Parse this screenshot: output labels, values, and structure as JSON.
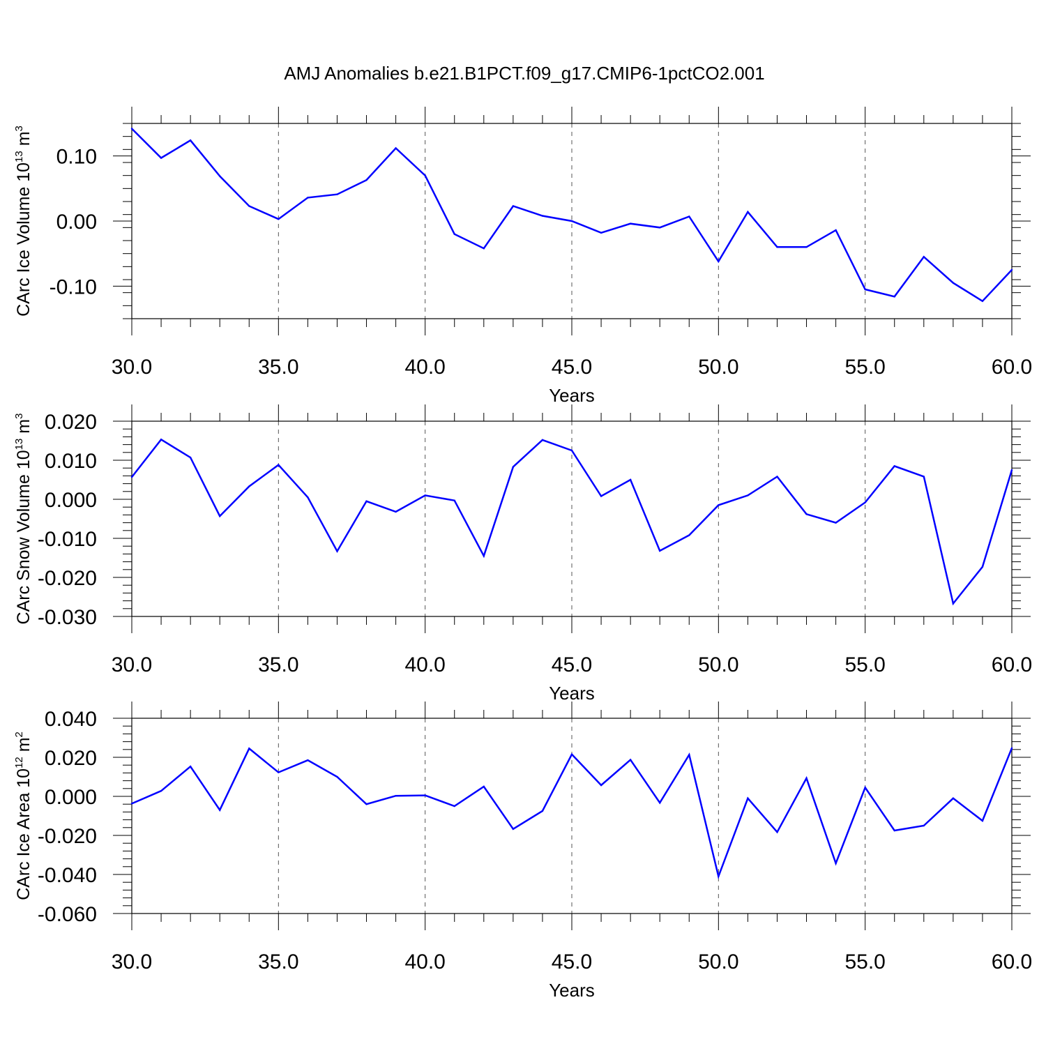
{
  "title": "AMJ Anomalies b.e21.B1PCT.f09_g17.CMIP6-1pctCO2.001",
  "colors": {
    "series": "#0000ff",
    "axis": "#000000",
    "grid": "#555555"
  },
  "chart_data": [
    {
      "type": "line",
      "xlabel": "Years",
      "ylabel": {
        "main": "CArc Ice Volume 10",
        "sup": "13",
        "unit": " m",
        "unit_sup": "3"
      },
      "xlim": [
        30,
        60
      ],
      "ylim": [
        -0.15,
        0.15
      ],
      "x_ticks": [
        30,
        35,
        40,
        45,
        50,
        55,
        60
      ],
      "x_tick_labels": [
        "30.0",
        "35.0",
        "40.0",
        "45.0",
        "50.0",
        "55.0",
        "60.0"
      ],
      "y_ticks": [
        -0.1,
        0.0,
        0.1
      ],
      "y_tick_labels": [
        "-0.10",
        "0.00",
        "0.10"
      ],
      "grid": "vertical dashed at major x ticks",
      "x": [
        30,
        31,
        32,
        33,
        34,
        35,
        36,
        37,
        38,
        39,
        40,
        41,
        42,
        43,
        44,
        45,
        46,
        47,
        48,
        49,
        50,
        51,
        52,
        53,
        54,
        55,
        56,
        57,
        58,
        59,
        60
      ],
      "values": [
        0.142,
        0.097,
        0.124,
        0.069,
        0.023,
        0.003,
        0.036,
        0.041,
        0.063,
        0.112,
        0.07,
        -0.02,
        -0.042,
        0.023,
        0.008,
        0.0,
        -0.018,
        -0.004,
        -0.01,
        0.007,
        -0.062,
        0.014,
        -0.04,
        -0.04,
        -0.014,
        -0.105,
        -0.116,
        -0.055,
        -0.095,
        -0.123,
        -0.075
      ]
    },
    {
      "type": "line",
      "xlabel": "Years",
      "ylabel": {
        "main": "CArc Snow Volume 10",
        "sup": "13",
        "unit": " m",
        "unit_sup": "3"
      },
      "xlim": [
        30,
        60
      ],
      "ylim": [
        -0.03,
        0.02
      ],
      "x_ticks": [
        30,
        35,
        40,
        45,
        50,
        55,
        60
      ],
      "x_tick_labels": [
        "30.0",
        "35.0",
        "40.0",
        "45.0",
        "50.0",
        "55.0",
        "60.0"
      ],
      "y_ticks": [
        -0.03,
        -0.02,
        -0.01,
        0.0,
        0.01,
        0.02
      ],
      "y_tick_labels": [
        "-0.030",
        "-0.020",
        "-0.010",
        "0.000",
        "0.010",
        "0.020"
      ],
      "grid": "vertical dashed at major x ticks",
      "x": [
        30,
        31,
        32,
        33,
        34,
        35,
        36,
        37,
        38,
        39,
        40,
        41,
        42,
        43,
        44,
        45,
        46,
        47,
        48,
        49,
        50,
        51,
        52,
        53,
        54,
        55,
        56,
        57,
        58,
        59,
        60
      ],
      "values": [
        0.0057,
        0.0153,
        0.0107,
        -0.0043,
        0.0033,
        0.0088,
        0.0005,
        -0.0133,
        -0.0005,
        -0.0032,
        0.001,
        -0.0003,
        -0.0145,
        0.0083,
        0.0152,
        0.0125,
        0.0008,
        0.005,
        -0.0132,
        -0.0092,
        -0.0015,
        0.001,
        0.0058,
        -0.0038,
        -0.006,
        -0.0008,
        0.0085,
        0.0058,
        -0.0267,
        -0.0173,
        0.0075
      ]
    },
    {
      "type": "line",
      "xlabel": "Years",
      "ylabel": {
        "main": "CArc Ice Area 10",
        "sup": "12",
        "unit": " m",
        "unit_sup": "2"
      },
      "xlim": [
        30,
        60
      ],
      "ylim": [
        -0.06,
        0.04
      ],
      "x_ticks": [
        30,
        35,
        40,
        45,
        50,
        55,
        60
      ],
      "x_tick_labels": [
        "30.0",
        "35.0",
        "40.0",
        "45.0",
        "50.0",
        "55.0",
        "60.0"
      ],
      "y_ticks": [
        -0.06,
        -0.04,
        -0.02,
        0.0,
        0.02,
        0.04
      ],
      "y_tick_labels": [
        "-0.060",
        "-0.040",
        "-0.020",
        "0.000",
        "0.020",
        "0.040"
      ],
      "grid": "vertical dashed at major x ticks",
      "x": [
        30,
        31,
        32,
        33,
        34,
        35,
        36,
        37,
        38,
        39,
        40,
        41,
        42,
        43,
        44,
        45,
        46,
        47,
        48,
        49,
        50,
        51,
        52,
        53,
        54,
        55,
        56,
        57,
        58,
        59,
        60
      ],
      "values": [
        -0.0037,
        0.0028,
        0.0153,
        -0.007,
        0.0245,
        0.0123,
        0.0185,
        0.01,
        -0.004,
        0.0003,
        0.0005,
        -0.005,
        0.005,
        -0.0167,
        -0.0075,
        0.0215,
        0.0057,
        0.0187,
        -0.0033,
        0.0213,
        -0.041,
        -0.001,
        -0.0183,
        0.0093,
        -0.0343,
        0.0045,
        -0.0175,
        -0.015,
        -0.001,
        -0.0125,
        0.0247
      ]
    }
  ]
}
